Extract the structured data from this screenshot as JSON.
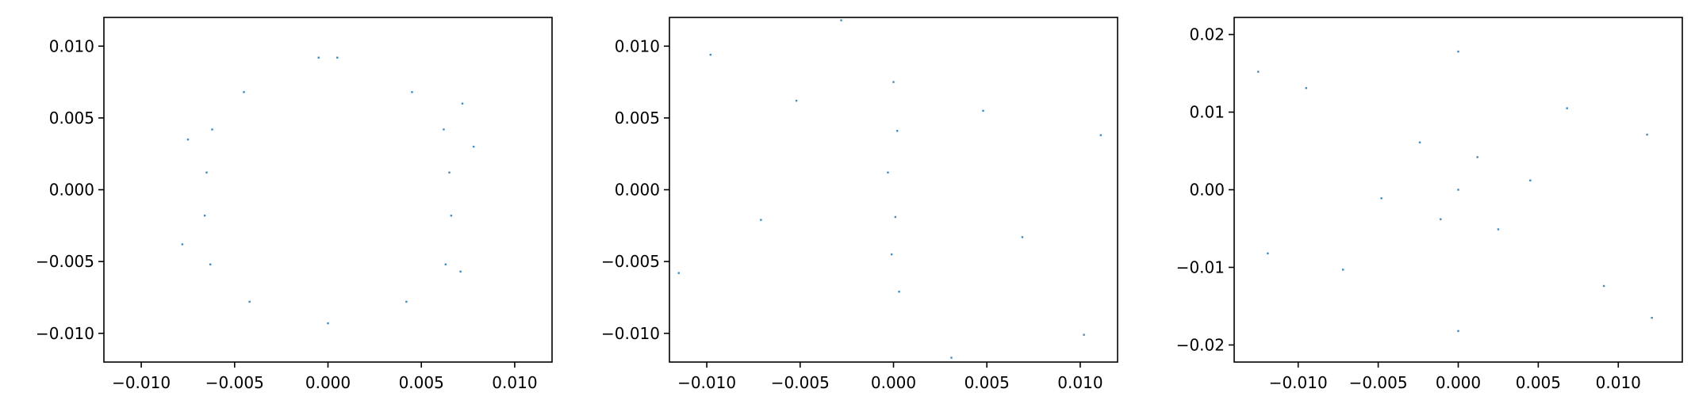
{
  "figure": {
    "background": "#ffffff"
  },
  "chart_data": [
    {
      "type": "scatter",
      "title": "",
      "xlabel": "",
      "ylabel": "",
      "xlim": [
        -0.012,
        0.012
      ],
      "ylim": [
        -0.012,
        0.012
      ],
      "xticks": [
        -0.01,
        -0.005,
        0.0,
        0.005,
        0.01
      ],
      "xtick_labels": [
        "−0.010",
        "−0.005",
        "0.000",
        "0.005",
        "0.010"
      ],
      "yticks": [
        -0.01,
        -0.005,
        0.0,
        0.005,
        0.01
      ],
      "ytick_labels": [
        "−0.010",
        "−0.005",
        "0.000",
        "0.005",
        "0.010"
      ],
      "grid": false,
      "legend": "none",
      "color": "#1f77b4",
      "point_opacity": 0.85,
      "series": [
        {
          "points": [
            [
              -0.0005,
              0.0092
            ],
            [
              0.0005,
              0.0092
            ],
            [
              -0.0045,
              0.0068
            ],
            [
              0.0045,
              0.0068
            ],
            [
              -0.0062,
              0.0042
            ],
            [
              0.0062,
              0.0042
            ],
            [
              -0.0065,
              0.0012
            ],
            [
              0.0065,
              0.0012
            ],
            [
              -0.0066,
              -0.0018
            ],
            [
              0.0066,
              -0.0018
            ],
            [
              -0.0063,
              -0.0052
            ],
            [
              0.0063,
              -0.0052
            ],
            [
              -0.0042,
              -0.0078
            ],
            [
              0.0042,
              -0.0078
            ],
            [
              0.0,
              -0.0093
            ],
            [
              -0.0075,
              0.0035
            ],
            [
              0.0078,
              0.003
            ],
            [
              -0.0078,
              -0.0038
            ],
            [
              0.0072,
              0.006
            ],
            [
              0.0071,
              -0.0057
            ]
          ]
        }
      ]
    },
    {
      "type": "scatter",
      "title": "",
      "xlabel": "",
      "ylabel": "",
      "xlim": [
        -0.012,
        0.012
      ],
      "ylim": [
        -0.012,
        0.012
      ],
      "xticks": [
        -0.01,
        -0.005,
        0.0,
        0.005,
        0.01
      ],
      "xtick_labels": [
        "−0.010",
        "−0.005",
        "0.000",
        "0.005",
        "0.010"
      ],
      "yticks": [
        -0.01,
        -0.005,
        0.0,
        0.005,
        0.01
      ],
      "ytick_labels": [
        "−0.010",
        "−0.005",
        "0.000",
        "0.005",
        "0.010"
      ],
      "grid": false,
      "legend": "none",
      "color": "#1f77b4",
      "point_opacity": 0.85,
      "series": [
        {
          "points": [
            [
              0.0,
              0.0075
            ],
            [
              0.0002,
              0.0041
            ],
            [
              -0.0003,
              0.0012
            ],
            [
              0.0001,
              -0.0019
            ],
            [
              -0.0001,
              -0.0045
            ],
            [
              0.0003,
              -0.0071
            ],
            [
              -0.0052,
              0.0062
            ],
            [
              0.0048,
              0.0055
            ],
            [
              -0.0071,
              -0.0021
            ],
            [
              0.0069,
              -0.0033
            ],
            [
              -0.0098,
              0.0094
            ],
            [
              0.0102,
              -0.0101
            ],
            [
              -0.0115,
              -0.0058
            ],
            [
              0.0111,
              0.0038
            ],
            [
              -0.0028,
              0.0118
            ],
            [
              0.0031,
              -0.0117
            ]
          ]
        }
      ]
    },
    {
      "type": "scatter",
      "title": "",
      "xlabel": "",
      "ylabel": "",
      "xlim": [
        -0.014,
        0.014
      ],
      "ylim": [
        -0.0222,
        0.0222
      ],
      "xticks": [
        -0.01,
        -0.005,
        0.0,
        0.005,
        0.01
      ],
      "xtick_labels": [
        "−0.010",
        "−0.005",
        "0.000",
        "0.005",
        "0.010"
      ],
      "yticks": [
        -0.02,
        -0.01,
        0.0,
        0.01,
        0.02
      ],
      "ytick_labels": [
        "−0.02",
        "−0.01",
        "0.00",
        "0.01",
        "0.02"
      ],
      "grid": false,
      "legend": "none",
      "color": "#1f77b4",
      "point_opacity": 0.85,
      "series": [
        {
          "points": [
            [
              0.0,
              0.0
            ],
            [
              0.0012,
              0.0042
            ],
            [
              -0.0011,
              -0.0038
            ],
            [
              0.0025,
              -0.0051
            ],
            [
              -0.0024,
              0.0061
            ],
            [
              0.0045,
              0.0012
            ],
            [
              -0.0048,
              -0.0011
            ],
            [
              0.0068,
              0.0105
            ],
            [
              -0.0072,
              -0.0103
            ],
            [
              0.0091,
              -0.0124
            ],
            [
              -0.0095,
              0.0131
            ],
            [
              0.0,
              0.0178
            ],
            [
              0.0,
              -0.0182
            ],
            [
              -0.0125,
              0.0152
            ],
            [
              0.0121,
              -0.0165
            ],
            [
              0.0118,
              0.0071
            ],
            [
              -0.0119,
              -0.0082
            ]
          ]
        }
      ]
    }
  ]
}
